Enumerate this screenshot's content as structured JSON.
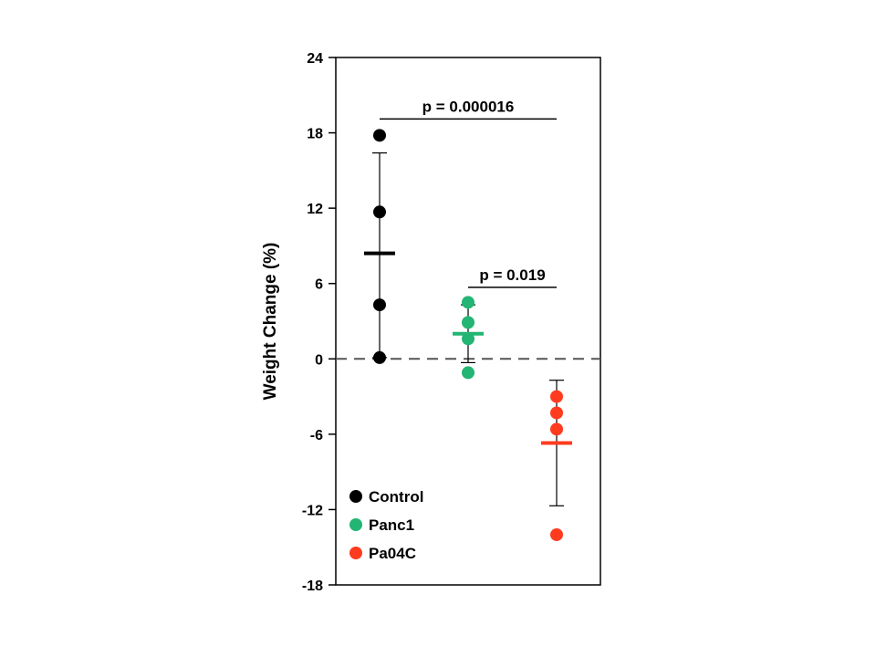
{
  "chart_data": {
    "type": "scatter",
    "title": "",
    "xlabel": "",
    "ylabel": "Weight Change (%)",
    "ylim": [
      -18,
      24
    ],
    "yticks": [
      -18,
      -12,
      -6,
      0,
      6,
      12,
      18,
      24
    ],
    "grid": false,
    "legend_position": "bottom-left",
    "zero_line": "dashed",
    "series": [
      {
        "name": "Control",
        "color": "#000000",
        "category_index": 0,
        "points": [
          17.8,
          11.7,
          4.3,
          0.1
        ],
        "mean": 8.4,
        "error_low": 0.1,
        "error_high": 16.4
      },
      {
        "name": "Panc1",
        "color": "#22b573",
        "category_index": 1,
        "points": [
          4.5,
          2.9,
          1.6,
          -1.1
        ],
        "mean": 2.0,
        "error_low": -0.3,
        "error_high": 4.3
      },
      {
        "name": "Pa04C",
        "color": "#ff3b1f",
        "category_index": 2,
        "points": [
          -3.0,
          -4.3,
          -5.6,
          -14.0
        ],
        "mean": -6.7,
        "error_low": -11.7,
        "error_high": -1.7
      }
    ],
    "annotations": [
      {
        "text": "p = 0.000016",
        "from": 0,
        "to": 2,
        "y": 19.1
      },
      {
        "text": "p = 0.019",
        "from": 1,
        "to": 2,
        "y": 5.7
      }
    ]
  }
}
